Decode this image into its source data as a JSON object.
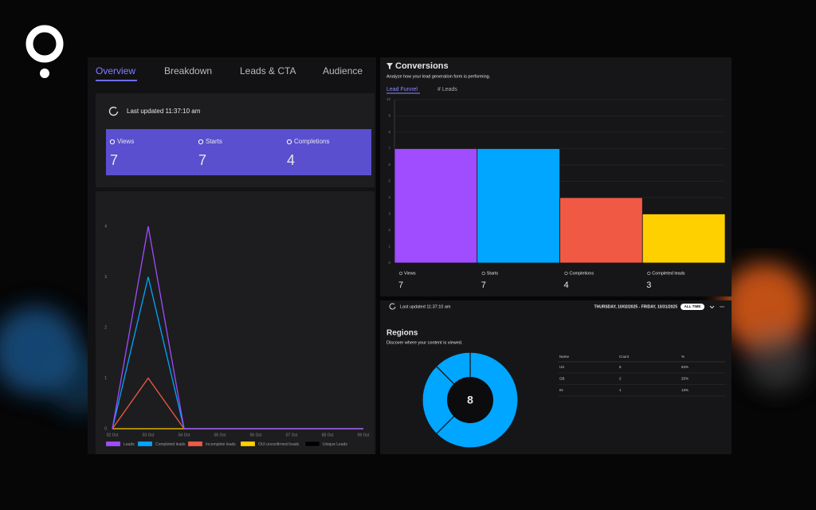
{
  "tabs": [
    "Overview",
    "Breakdown",
    "Leads & CTA",
    "Audience"
  ],
  "summary": {
    "last_updated": "Last updated 11:37:10 am",
    "stats": [
      {
        "label": "Views",
        "value": 7
      },
      {
        "label": "Starts",
        "value": 7
      },
      {
        "label": "Completions",
        "value": 4
      }
    ]
  },
  "leads_chart": {
    "type": "line",
    "x": [
      "02 Oct",
      "03 Oct",
      "04 Oct",
      "05 Oct",
      "06 Oct",
      "07 Oct",
      "08 Oct",
      "09 Oct"
    ],
    "series": [
      {
        "name": "Leads",
        "color": "#a04cff",
        "values": [
          0,
          4,
          0,
          0,
          0,
          0,
          0,
          0
        ]
      },
      {
        "name": "Completed leads",
        "color": "#00a6ff",
        "values": [
          0,
          3,
          0,
          0,
          0,
          0,
          0,
          0
        ]
      },
      {
        "name": "Incomplete leads",
        "color": "#f05a45",
        "values": [
          0,
          1,
          0,
          0,
          0,
          0,
          0,
          0
        ]
      },
      {
        "name": "OUI unconfirmed leads",
        "color": "#ffd000",
        "values": [
          0,
          0,
          0,
          0,
          0,
          0,
          0,
          0
        ]
      },
      {
        "name": "Unique Leads",
        "color": "#000000",
        "values": [
          0,
          0,
          0,
          0,
          0,
          0,
          0,
          0
        ]
      }
    ],
    "ylim": [
      0,
      4
    ],
    "yticks": [
      0,
      1,
      2,
      3,
      4
    ]
  },
  "conversions": {
    "title": "Conversions",
    "subtitle": "Analyze how your lead generation form is performing.",
    "tabs": [
      "Lead Funnel",
      "# Leads"
    ],
    "chart": {
      "type": "bar",
      "categories": [
        "Views",
        "Starts",
        "Completions",
        "Completed leads"
      ],
      "values": [
        7,
        7,
        4,
        3
      ],
      "colors": [
        "#a04cff",
        "#00a6ff",
        "#f05a45",
        "#ffd000"
      ],
      "ylim": [
        0,
        10
      ],
      "yticks": [
        0,
        1,
        2,
        3,
        4,
        5,
        6,
        7,
        8,
        9,
        10
      ],
      "grid": true
    }
  },
  "regions_panel": {
    "last_updated": "Last updated 11:37:10 am",
    "date_range": "THURSDAY, 10/02/2025 - FRIDAY, 10/31/2025",
    "range_button": "ALL TIME",
    "title": "Regions",
    "subtitle": "Discover where your content is viewed.",
    "total": 8,
    "color": "#00a6ff",
    "table": {
      "columns": [
        "Name",
        "Count",
        "%"
      ],
      "rows": [
        [
          "US",
          5,
          "63%"
        ],
        [
          "GB",
          2,
          "25%"
        ],
        [
          "IN",
          1,
          "13%"
        ]
      ]
    }
  }
}
